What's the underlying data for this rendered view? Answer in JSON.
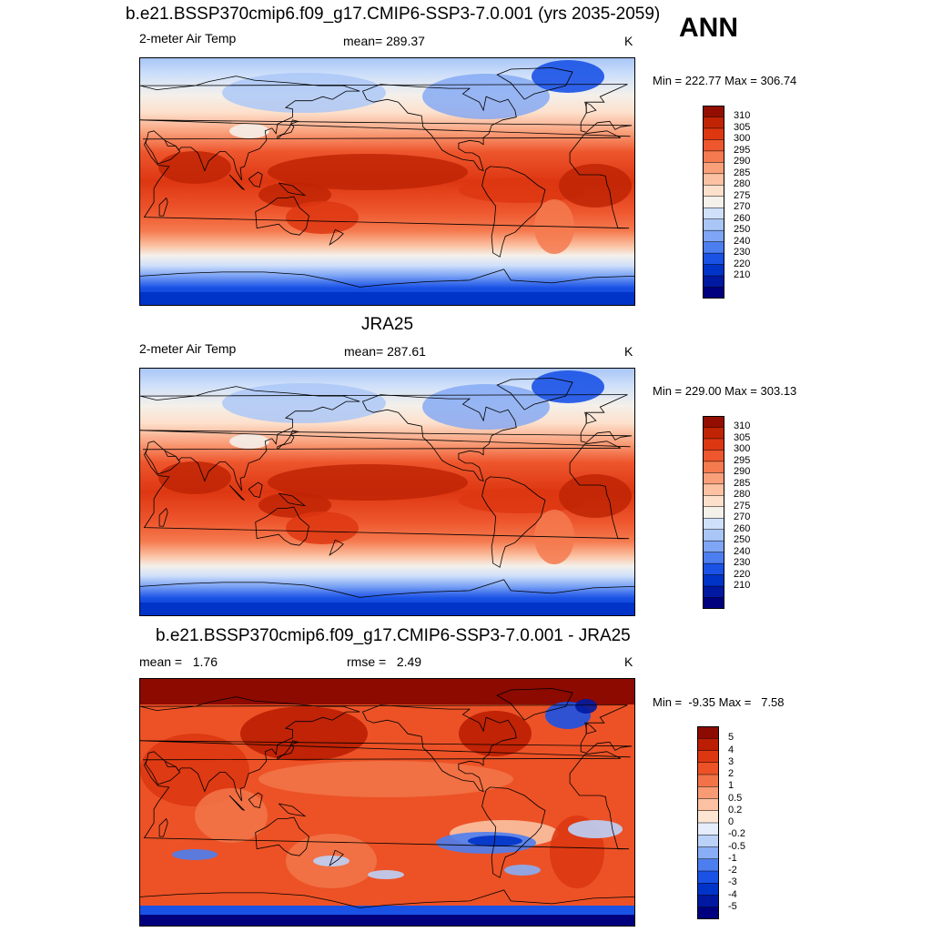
{
  "season": "ANN",
  "colors": {
    "abs": [
      "#00007f",
      "#0019a0",
      "#0033c8",
      "#1a52e6",
      "#4d7ef0",
      "#7fa6f5",
      "#a9c6f7",
      "#cfe0fa",
      "#f4f0ea",
      "#fde0cc",
      "#fbc1a2",
      "#f9a07b",
      "#f57a4f",
      "#ee562d",
      "#dd3712",
      "#c02405",
      "#930e00"
    ],
    "diff": [
      "#00007f",
      "#0019a0",
      "#0033c8",
      "#1a52e6",
      "#4d7ef0",
      "#8aaef5",
      "#bcd1f8",
      "#e5ecfb",
      "#fde5d4",
      "#fbc1a2",
      "#f89b74",
      "#f27348",
      "#ec5226",
      "#dd3712",
      "#bb1e02",
      "#8c0a00"
    ]
  },
  "panels": [
    {
      "title": "b.e21.BSSP370cmip6.f09_g17.CMIP6-SSP3-7.0.001 (yrs 2035-2059)",
      "left_label": "2-meter Air Temp",
      "center_label": "mean= 289.37",
      "units": "K",
      "minmax": "Min = 222.77 Max = 306.74",
      "scale": "abs",
      "ticks": [
        "310",
        "305",
        "300",
        "295",
        "290",
        "285",
        "280",
        "275",
        "270",
        "260",
        "250",
        "240",
        "230",
        "220",
        "210"
      ]
    },
    {
      "title": "JRA25",
      "left_label": "2-meter Air Temp",
      "center_label": "mean= 287.61",
      "units": "K",
      "minmax": "Min = 229.00 Max = 303.13",
      "scale": "abs",
      "ticks": [
        "310",
        "305",
        "300",
        "295",
        "290",
        "285",
        "280",
        "275",
        "270",
        "260",
        "250",
        "240",
        "230",
        "220",
        "210"
      ]
    },
    {
      "title": "b.e21.BSSP370cmip6.f09_g17.CMIP6-SSP3-7.0.001 - JRA25",
      "left_label": "mean =   1.76",
      "center_label": "rmse =   2.49",
      "units": "K",
      "minmax": "Min =  -9.35 Max =   7.58",
      "scale": "diff",
      "ticks": [
        "5",
        "4",
        "3",
        "2",
        "1",
        "0.5",
        "0.2",
        "0",
        "-0.2",
        "-0.5",
        "-1",
        "-2",
        "-3",
        "-4",
        "-5"
      ]
    }
  ]
}
